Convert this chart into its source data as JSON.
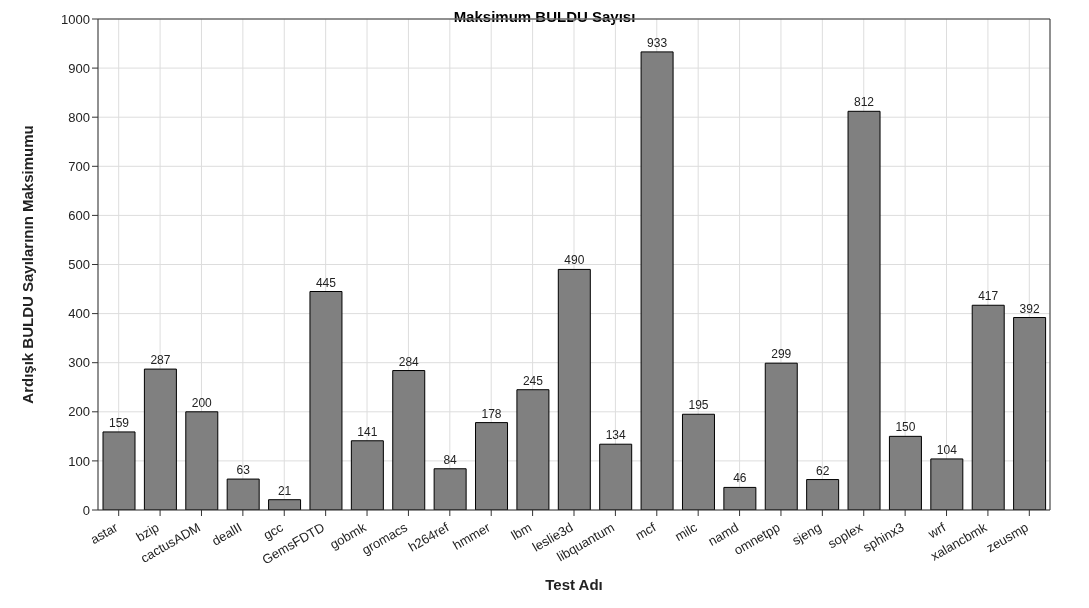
{
  "chart_data": {
    "type": "bar",
    "title": "Maksimum BULDU Sayısı",
    "xlabel": "Test Adı",
    "ylabel": "Ardışık BULDU Sayılarının Maksimumu",
    "categories": [
      "astar",
      "bzip",
      "cactusADM",
      "dealII",
      "gcc",
      "GemsFDTD",
      "gobmk",
      "gromacs",
      "h264ref",
      "hmmer",
      "lbm",
      "leslie3d",
      "libquantum",
      "mcf",
      "milc",
      "namd",
      "omnetpp",
      "sjeng",
      "soplex",
      "sphinx3",
      "wrf",
      "xalancbmk",
      "zeusmp"
    ],
    "values": [
      159,
      287,
      200,
      63,
      21,
      445,
      141,
      284,
      84,
      178,
      245,
      490,
      134,
      933,
      195,
      46,
      299,
      62,
      812,
      150,
      104,
      417,
      392
    ],
    "color": "#808080",
    "ylim": [
      0,
      1000
    ],
    "yticks": [
      0,
      100,
      200,
      300,
      400,
      500,
      600,
      700,
      800,
      900,
      1000
    ],
    "grid": true,
    "data_labels": true
  }
}
